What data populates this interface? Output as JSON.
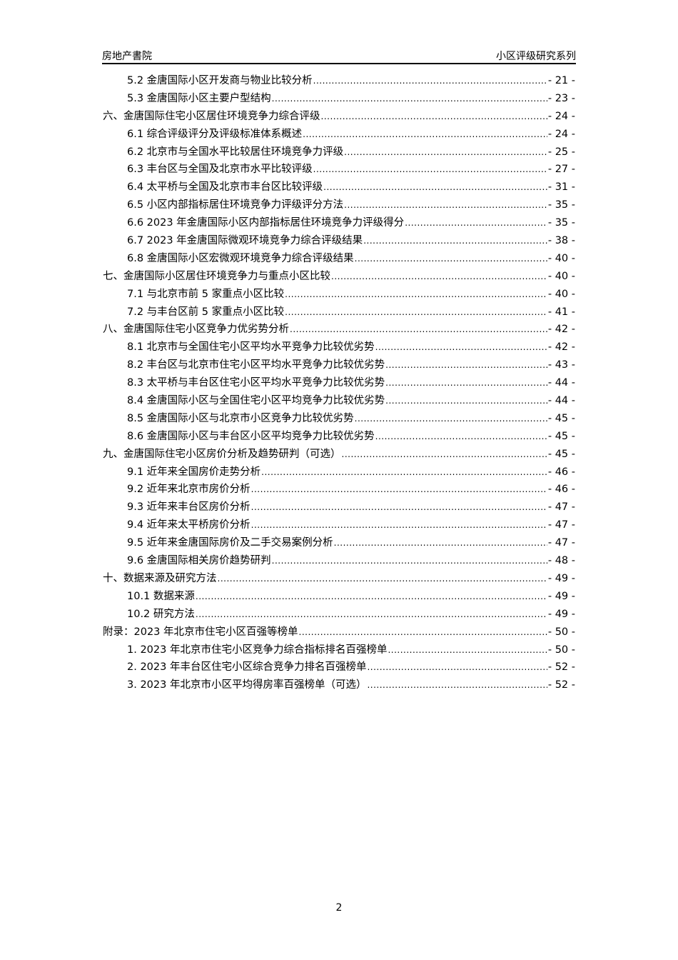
{
  "header": {
    "left": "房地产書院",
    "right": "小区评级研究系列"
  },
  "toc": [
    {
      "level": 2,
      "title": "5.2 金唐国际小区开发商与物业比较分析",
      "page": "- 21 -"
    },
    {
      "level": 2,
      "title": "5.3 金唐国际小区主要户型结构",
      "page": "- 23 -"
    },
    {
      "level": 1,
      "title": "六、金唐国际住宅小区居住环境竞争力综合评级",
      "page": "- 24 -"
    },
    {
      "level": 2,
      "title": "6.1 综合评级评分及评级标准体系概述",
      "page": "- 24 -"
    },
    {
      "level": 2,
      "title": "6.2 北京市与全国水平比较居住环境竞争力评级",
      "page": "- 25 -"
    },
    {
      "level": 2,
      "title": "6.3 丰台区与全国及北京市水平比较评级",
      "page": "- 27 -"
    },
    {
      "level": 2,
      "title": "6.4 太平桥与全国及北京市丰台区比较评级",
      "page": "- 31 -"
    },
    {
      "level": 2,
      "title": "6.5 小区内部指标居住环境竞争力评级评分方法",
      "page": "- 35 -"
    },
    {
      "level": 2,
      "title": "6.6 2023 年金唐国际小区内部指标居住环境竞争力评级得分",
      "page": "- 35 -"
    },
    {
      "level": 2,
      "title": "6.7 2023 年金唐国际微观环境竞争力综合评级结果",
      "page": "- 38 -"
    },
    {
      "level": 2,
      "title": "6.8 金唐国际小区宏微观环境竞争力综合评级结果",
      "page": "- 40 -"
    },
    {
      "level": 1,
      "title": "七、金唐国际小区居住环境竞争力与重点小区比较",
      "page": "- 40 -"
    },
    {
      "level": 2,
      "title": "7.1 与北京市前 5 家重点小区比较",
      "page": "- 40 -"
    },
    {
      "level": 2,
      "title": "7.2 与丰台区前 5 家重点小区比较",
      "page": "- 41 -"
    },
    {
      "level": 1,
      "title": "八、金唐国际住宅小区竞争力优劣势分析",
      "page": "- 42 -"
    },
    {
      "level": 2,
      "title": "8.1 北京市与全国住宅小区平均水平竞争力比较优劣势",
      "page": "- 42 -"
    },
    {
      "level": 2,
      "title": "8.2 丰台区与北京市住宅小区平均水平竞争力比较优劣势",
      "page": "- 43 -"
    },
    {
      "level": 2,
      "title": "8.3 太平桥与丰台区住宅小区平均水平竞争力比较优劣势",
      "page": "- 44 -"
    },
    {
      "level": 2,
      "title": "8.4 金唐国际小区与全国住宅小区平均竞争力比较优劣势",
      "page": "- 44 -"
    },
    {
      "level": 2,
      "title": "8.5 金唐国际小区与北京市小区竞争力比较优劣势",
      "page": "- 45 -"
    },
    {
      "level": 2,
      "title": "8.6 金唐国际小区与丰台区小区平均竞争力比较优劣势",
      "page": "- 45 -"
    },
    {
      "level": 1,
      "title": "九、金唐国际住宅小区房价分析及趋势研判（可选）",
      "page": "- 45 -"
    },
    {
      "level": 2,
      "title": "9.1 近年来全国房价走势分析",
      "page": "- 46 -"
    },
    {
      "level": 2,
      "title": "9.2 近年来北京市房价分析",
      "page": "- 46 -"
    },
    {
      "level": 2,
      "title": "9.3 近年来丰台区房价分析",
      "page": "- 47 -"
    },
    {
      "level": 2,
      "title": "9.4 近年来太平桥房价分析",
      "page": "- 47 -"
    },
    {
      "level": 2,
      "title": "9.5 近年来金唐国际房价及二手交易案例分析",
      "page": "- 47 -"
    },
    {
      "level": 2,
      "title": "9.6 金唐国际相关房价趋势研判",
      "page": "- 48 -"
    },
    {
      "level": 1,
      "title": "十、数据来源及研究方法",
      "page": "- 49 -"
    },
    {
      "level": 2,
      "title": "10.1 数据来源",
      "page": "- 49 -"
    },
    {
      "level": 2,
      "title": "10.2 研究方法",
      "page": "- 49 -"
    },
    {
      "level": 1,
      "title": "附录：2023 年北京市住宅小区百强等榜单",
      "page": "- 50 -"
    },
    {
      "level": 2,
      "title": "1. 2023 年北京市住宅小区竞争力综合指标排名百强榜单",
      "page": "- 50 -"
    },
    {
      "level": 2,
      "title": "2. 2023 年丰台区住宅小区综合竞争力排名百强榜单",
      "page": "- 52 -"
    },
    {
      "level": 2,
      "title": "3. 2023 年北京市小区平均得房率百强榜单（可选）",
      "page": "- 52 -"
    }
  ],
  "footer": {
    "page_number": "2"
  }
}
